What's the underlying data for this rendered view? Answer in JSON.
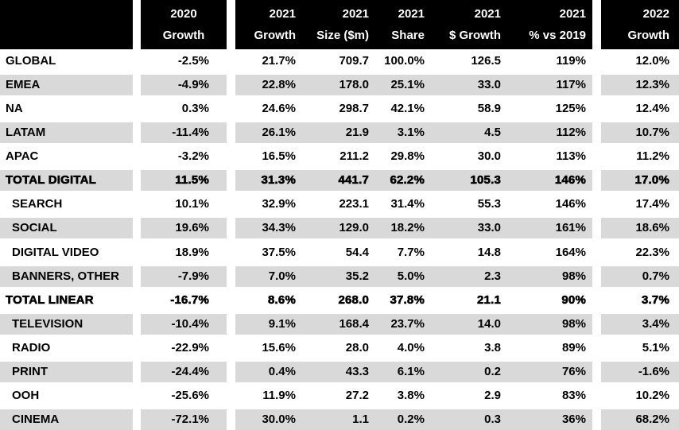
{
  "accent_colors": {
    "header_bg": "#000000",
    "header_text": "#ffffff",
    "stripe_bg": "#d9d9d9",
    "body_text": "#000000"
  },
  "header": {
    "col_2020": {
      "year": "2020",
      "label": "Growth"
    },
    "cols_2021": [
      {
        "year": "2021",
        "label": "Growth"
      },
      {
        "year": "2021",
        "label": "Size ($m)"
      },
      {
        "year": "2021",
        "label": "Share"
      },
      {
        "year": "2021",
        "label": "$ Growth"
      },
      {
        "year": "2021",
        "label": "% vs 2019"
      }
    ],
    "col_2022": {
      "year": "2022",
      "label": "Growth"
    }
  },
  "chart_data": {
    "type": "table",
    "columns": [
      "",
      "2020 Growth",
      "2021 Growth",
      "2021 Size ($m)",
      "2021 Share",
      "2021 $ Growth",
      "2021 % vs 2019",
      "2022 Growth"
    ],
    "rows": [
      {
        "label": "GLOBAL",
        "indent": false,
        "total": false,
        "values": [
          "-2.5%",
          "21.7%",
          "709.7",
          "100.0%",
          "126.5",
          "119%",
          "12.0%"
        ]
      },
      {
        "label": "EMEA",
        "indent": false,
        "total": false,
        "values": [
          "-4.9%",
          "22.8%",
          "178.0",
          "25.1%",
          "33.0",
          "117%",
          "12.3%"
        ]
      },
      {
        "label": "NA",
        "indent": false,
        "total": false,
        "values": [
          "0.3%",
          "24.6%",
          "298.7",
          "42.1%",
          "58.9",
          "125%",
          "12.4%"
        ]
      },
      {
        "label": "LATAM",
        "indent": false,
        "total": false,
        "values": [
          "-11.4%",
          "26.1%",
          "21.9",
          "3.1%",
          "4.5",
          "112%",
          "10.7%"
        ]
      },
      {
        "label": "APAC",
        "indent": false,
        "total": false,
        "values": [
          "-3.2%",
          "16.5%",
          "211.2",
          "29.8%",
          "30.0",
          "113%",
          "11.2%"
        ]
      },
      {
        "label": "TOTAL DIGITAL",
        "indent": false,
        "total": true,
        "values": [
          "11.5%",
          "31.3%",
          "441.7",
          "62.2%",
          "105.3",
          "146%",
          "17.0%"
        ]
      },
      {
        "label": "SEARCH",
        "indent": true,
        "total": false,
        "values": [
          "10.1%",
          "32.9%",
          "223.1",
          "31.4%",
          "55.3",
          "146%",
          "17.4%"
        ]
      },
      {
        "label": "SOCIAL",
        "indent": true,
        "total": false,
        "values": [
          "19.6%",
          "34.3%",
          "129.0",
          "18.2%",
          "33.0",
          "161%",
          "18.6%"
        ]
      },
      {
        "label": "DIGITAL VIDEO",
        "indent": true,
        "total": false,
        "values": [
          "18.9%",
          "37.5%",
          "54.4",
          "7.7%",
          "14.8",
          "164%",
          "22.3%"
        ]
      },
      {
        "label": "BANNERS, OTHER",
        "indent": true,
        "total": false,
        "values": [
          "-7.9%",
          "7.0%",
          "35.2",
          "5.0%",
          "2.3",
          "98%",
          "0.7%"
        ]
      },
      {
        "label": "TOTAL LINEAR",
        "indent": false,
        "total": true,
        "values": [
          "-16.7%",
          "8.6%",
          "268.0",
          "37.8%",
          "21.1",
          "90%",
          "3.7%"
        ]
      },
      {
        "label": "TELEVISION",
        "indent": true,
        "total": false,
        "values": [
          "-10.4%",
          "9.1%",
          "168.4",
          "23.7%",
          "14.0",
          "98%",
          "3.4%"
        ]
      },
      {
        "label": "RADIO",
        "indent": true,
        "total": false,
        "values": [
          "-22.9%",
          "15.6%",
          "28.0",
          "4.0%",
          "3.8",
          "89%",
          "5.1%"
        ]
      },
      {
        "label": "PRINT",
        "indent": true,
        "total": false,
        "values": [
          "-24.4%",
          "0.4%",
          "43.3",
          "6.1%",
          "0.2",
          "76%",
          "-1.6%"
        ]
      },
      {
        "label": "OOH",
        "indent": true,
        "total": false,
        "values": [
          "-25.6%",
          "11.9%",
          "27.2",
          "3.8%",
          "2.9",
          "83%",
          "10.2%"
        ]
      },
      {
        "label": "CINEMA",
        "indent": true,
        "total": false,
        "values": [
          "-72.1%",
          "30.0%",
          "1.1",
          "0.2%",
          "0.3",
          "36%",
          "68.2%"
        ]
      }
    ]
  }
}
